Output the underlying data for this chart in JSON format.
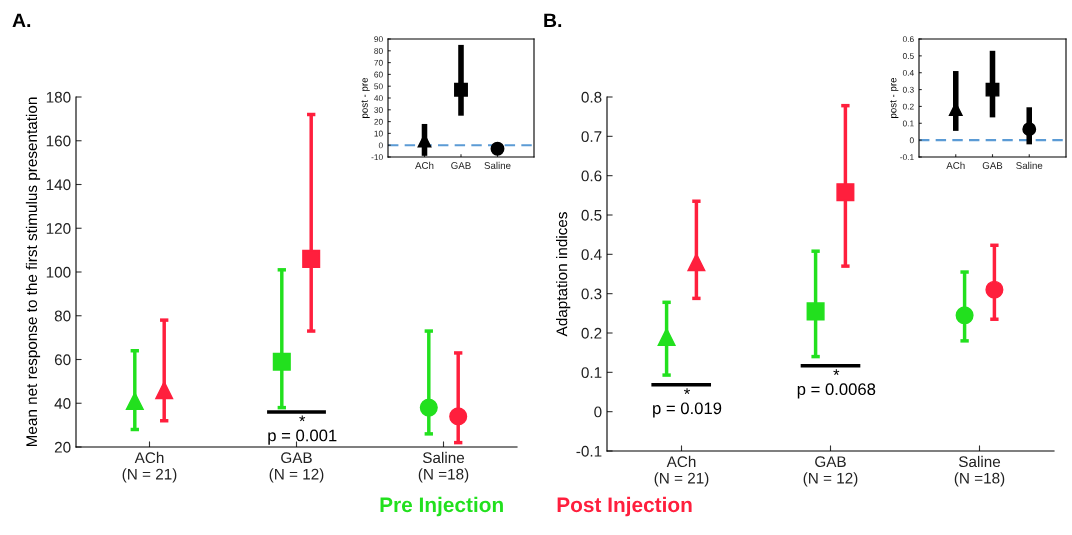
{
  "chart_data": [
    {
      "type": "scatter",
      "title": "A.",
      "ylabel": "Mean net response to the first stimulus presentation",
      "categories": [
        "ACh\n(N = 21)",
        "GAB\n(N = 12)",
        "Saline\n(N =18)"
      ],
      "marker": [
        "triangle",
        "square",
        "circle"
      ],
      "series": [
        {
          "name": "Pre Injection",
          "color": "#22e01e",
          "values": [
            41,
            59,
            38
          ],
          "errors": [
            [
              28,
              64
            ],
            [
              38,
              101
            ],
            [
              26,
              73
            ]
          ]
        },
        {
          "name": "Post Injection",
          "color": "#ff1f3d",
          "values": [
            46,
            106,
            34
          ],
          "errors": [
            [
              32,
              78
            ],
            [
              73,
              172
            ],
            [
              22,
              63
            ]
          ]
        }
      ],
      "ylim": [
        20,
        180
      ],
      "yticks": [
        20,
        40,
        60,
        80,
        100,
        120,
        140,
        160,
        180
      ],
      "annotations": [
        "*\np = 0.001"
      ],
      "legend": "bottom"
    },
    {
      "type": "scatter",
      "ylabel": "post - pre",
      "categories": [
        "ACh",
        "GAB",
        "Saline"
      ],
      "marker": [
        "triangle",
        "square",
        "circle"
      ],
      "series": [
        {
          "color": "#000000",
          "values": [
            4,
            47,
            -3
          ],
          "errors": [
            [
              -9,
              18
            ],
            [
              25,
              85
            ],
            [
              -7,
              0
            ]
          ]
        }
      ],
      "ylim": [
        -10,
        90
      ],
      "yticks": [
        -10,
        0,
        10,
        20,
        30,
        40,
        50,
        60,
        70,
        80,
        90
      ],
      "ref_lines": [
        {
          "axis": "y",
          "value": 0,
          "color": "#5b9bd5",
          "line_style": "dashed"
        }
      ]
    },
    {
      "type": "scatter",
      "title": "B.",
      "ylabel": "Adaptation indices",
      "categories": [
        "ACh\n(N = 21)",
        "GAB\n(N = 12)",
        "Saline\n(N =18)"
      ],
      "marker": [
        "triangle",
        "square",
        "circle"
      ],
      "series": [
        {
          "color": "#22e01e",
          "values": [
            0.19,
            0.255,
            0.245
          ],
          "errors": [
            [
              0.093,
              0.278
            ],
            [
              0.14,
              0.408
            ],
            [
              0.18,
              0.355
            ]
          ]
        },
        {
          "color": "#ff1f3d",
          "values": [
            0.38,
            0.558,
            0.31
          ],
          "errors": [
            [
              0.288,
              0.535
            ],
            [
              0.37,
              0.778
            ],
            [
              0.235,
              0.423
            ]
          ]
        }
      ],
      "ylim": [
        -0.1,
        0.8
      ],
      "yticks": [
        -0.1,
        0,
        0.1,
        0.2,
        0.3,
        0.4,
        0.5,
        0.6,
        0.7,
        0.8
      ],
      "annotations": [
        "*\np = 0.019",
        "*\np = 0.0068"
      ]
    },
    {
      "type": "scatter",
      "ylabel": "post - pre",
      "categories": [
        "ACh",
        "GAB",
        "Saline"
      ],
      "marker": [
        "triangle",
        "square",
        "circle"
      ],
      "series": [
        {
          "color": "#000000",
          "values": [
            0.185,
            0.3,
            0.065
          ],
          "errors": [
            [
              0.055,
              0.41
            ],
            [
              0.135,
              0.53
            ],
            [
              -0.025,
              0.195
            ]
          ]
        }
      ],
      "ylim": [
        -0.1,
        0.6
      ],
      "yticks": [
        -0.1,
        0,
        0.1,
        0.2,
        0.3,
        0.4,
        0.5,
        0.6
      ],
      "ref_lines": [
        {
          "axis": "y",
          "value": 0,
          "color": "#5b9bd5",
          "line_style": "dashed"
        }
      ]
    }
  ]
}
